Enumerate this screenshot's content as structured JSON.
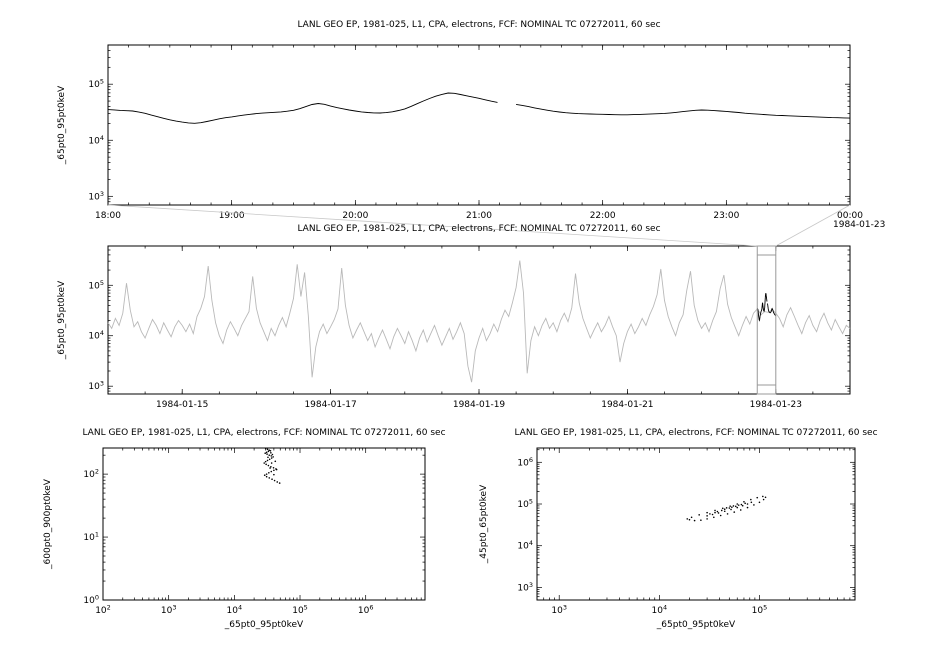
{
  "window": {
    "background": "#ffffff"
  },
  "chart_data": [
    {
      "id": "top",
      "type": "line",
      "title": "LANL GEO EP, 1981-025, L1, CPA, electrons, FCF: NOMINAL TC 07272011, 60 sec",
      "ylabel": "_65pt0_95pt0keV",
      "x_axis": {
        "scale": "linear",
        "min": 18,
        "max": 24,
        "minor_step": 0.16667,
        "major": [
          {
            "v": 18,
            "label": "18:00"
          },
          {
            "v": 19,
            "label": "19:00"
          },
          {
            "v": 20,
            "label": "20:00"
          },
          {
            "v": 21,
            "label": "21:00"
          },
          {
            "v": 22,
            "label": "22:00"
          },
          {
            "v": 23,
            "label": "23:00"
          },
          {
            "v": 24,
            "label": "00:00"
          }
        ],
        "end_label": "1984-01-23"
      },
      "y_axis": {
        "scale": "log",
        "min": 700,
        "max": 500000
      },
      "series": [
        {
          "name": "_65pt0_95pt0keV",
          "type": "line",
          "color": "#000000",
          "width": 0.9,
          "x0": 18,
          "dx": 0.05,
          "values": [
            35200,
            34800,
            34100,
            33600,
            33300,
            31800,
            30200,
            28100,
            26300,
            24600,
            23200,
            22000,
            21100,
            20400,
            20100,
            20600,
            21600,
            22800,
            24100,
            25200,
            26100,
            27200,
            28100,
            29000,
            29900,
            30500,
            31000,
            31500,
            32100,
            33000,
            34200,
            36500,
            39800,
            43500,
            45200,
            43800,
            40600,
            38200,
            36400,
            34700,
            33200,
            32000,
            31200,
            30800,
            30600,
            31100,
            32200,
            33900,
            36300,
            40100,
            44800,
            50200,
            55600,
            61000,
            65800,
            69500,
            68700,
            65600,
            62100,
            58800,
            55900,
            52600,
            49800,
            47400,
            null,
            null,
            43600,
            41800,
            39900,
            37800,
            35900,
            34300,
            33000,
            31900,
            31000,
            30400,
            29900,
            29600,
            29400,
            29200,
            29000,
            28800,
            28600,
            28500,
            28500,
            28700,
            28900,
            29200,
            29500,
            29800,
            30100,
            30700,
            31500,
            32500,
            33400,
            34200,
            34600,
            34300,
            33800,
            33300,
            32700,
            31900,
            31200,
            30400,
            29800,
            29300,
            28800,
            28300,
            27900,
            27600,
            27300,
            27000,
            26700,
            26400,
            26200,
            25900,
            25700,
            25400,
            25200,
            25000,
            24800
          ]
        }
      ]
    },
    {
      "id": "mid",
      "type": "line",
      "title": "LANL GEO EP, 1981-025, L1, CPA, electrons, FCF: NOMINAL TC 07272011, 60 sec",
      "ylabel": "_65pt0_95pt0keV",
      "x_axis": {
        "scale": "linear",
        "min": 14,
        "max": 24,
        "minor_step": 0.5,
        "major": [
          {
            "v": 15,
            "label": "1984-01-15"
          },
          {
            "v": 17,
            "label": "1984-01-17"
          },
          {
            "v": 19,
            "label": "1984-01-19"
          },
          {
            "v": 21,
            "label": "1984-01-21"
          },
          {
            "v": 23,
            "label": "1984-01-23"
          }
        ]
      },
      "y_axis": {
        "scale": "log",
        "min": 700,
        "max": 600000
      },
      "selection": {
        "x0": 22.75,
        "x1": 23.0
      },
      "series": [
        {
          "name": "_65pt0_95pt0keV (context)",
          "type": "line",
          "color": "#b9b9b9",
          "width": 0.9,
          "x0": 14,
          "dx": 0.05,
          "values": [
            18000,
            14000,
            22000,
            16000,
            28000,
            110000,
            32000,
            15000,
            19000,
            12000,
            9000,
            14000,
            21000,
            16000,
            11000,
            18000,
            13000,
            9500,
            15000,
            20000,
            16000,
            12000,
            17000,
            11000,
            24000,
            35000,
            60000,
            240000,
            50000,
            18000,
            10000,
            7000,
            13000,
            19000,
            14000,
            10000,
            16000,
            22000,
            30000,
            150000,
            35000,
            18000,
            12000,
            8000,
            14000,
            10000,
            16000,
            23000,
            15000,
            28000,
            55000,
            260000,
            60000,
            180000,
            25000,
            1500,
            6000,
            12000,
            17000,
            11000,
            15000,
            21000,
            34000,
            220000,
            40000,
            16000,
            9000,
            13000,
            18000,
            12000,
            8000,
            11000,
            6000,
            9000,
            13000,
            8500,
            5500,
            9500,
            14000,
            10000,
            7000,
            12000,
            8000,
            5000,
            9000,
            13000,
            7500,
            11000,
            16000,
            10000,
            6500,
            9500,
            14000,
            8500,
            12000,
            18000,
            11000,
            2500,
            1200,
            5000,
            9000,
            14000,
            8000,
            11000,
            17000,
            12000,
            21000,
            32000,
            24000,
            45000,
            90000,
            310000,
            70000,
            1800,
            8000,
            15000,
            10000,
            16000,
            22000,
            14000,
            18000,
            12000,
            20000,
            28000,
            19000,
            36000,
            170000,
            45000,
            22000,
            14000,
            9000,
            13000,
            18000,
            12000,
            16000,
            24000,
            15000,
            10000,
            3000,
            7000,
            12000,
            17000,
            11000,
            15000,
            22000,
            16000,
            26000,
            38000,
            65000,
            210000,
            50000,
            24000,
            15000,
            10000,
            18000,
            26000,
            80000,
            190000,
            40000,
            20000,
            14000,
            18000,
            12000,
            20000,
            30000,
            85000,
            160000,
            42000,
            23000,
            15000,
            10000,
            16000,
            24000,
            17000,
            28000,
            34000,
            26000,
            30000,
            29000,
            33000,
            28000,
            22000,
            15000,
            26000,
            36000,
            24000,
            16000,
            11000,
            18000,
            25000,
            16000,
            12000,
            20000,
            28000,
            18000,
            13000,
            21000,
            15000,
            11000,
            16000,
            14000
          ]
        },
        {
          "name": "_65pt0_95pt0keV (selected interval)",
          "type": "line",
          "color": "#000000",
          "width": 0.9,
          "ref_chart": 0,
          "ref_series": 0,
          "map_from": [
            18,
            24
          ],
          "map_to": [
            22.75,
            23.0
          ]
        }
      ]
    },
    {
      "id": "bl",
      "type": "scatter",
      "title": "LANL GEO EP, 1981-025, L1, CPA, electrons, FCF: NOMINAL TC 07272011, 60 sec",
      "xlabel": "_65pt0_95pt0keV",
      "ylabel": "_600pt0_900pt0keV",
      "x_axis": {
        "scale": "log",
        "min": 100,
        "max": 8000000
      },
      "y_axis": {
        "scale": "log",
        "min": 1,
        "max": 260
      },
      "series": [
        {
          "name": "600-900keV vs 65-95keV",
          "type": "scatter",
          "color": "#000000",
          "points": [
            [
              30000,
              255
            ],
            [
              32000,
              248
            ],
            [
              34000,
              240
            ],
            [
              33000,
              230
            ],
            [
              31000,
              222
            ],
            [
              29500,
              215
            ],
            [
              31500,
              208
            ],
            [
              34000,
              200
            ],
            [
              36500,
              195
            ],
            [
              39000,
              188
            ],
            [
              37000,
              180
            ],
            [
              34500,
              172
            ],
            [
              32000,
              165
            ],
            [
              30000,
              158
            ],
            [
              28500,
              150
            ],
            [
              30500,
              143
            ],
            [
              33000,
              137
            ],
            [
              36000,
              131
            ],
            [
              39500,
              126
            ],
            [
              43000,
              121
            ],
            [
              40000,
              115
            ],
            [
              36500,
              110
            ],
            [
              33500,
              105
            ],
            [
              31000,
              100
            ],
            [
              29000,
              96
            ],
            [
              31000,
              91
            ],
            [
              34000,
              87
            ],
            [
              37500,
              83
            ],
            [
              41000,
              79
            ],
            [
              45000,
              75
            ],
            [
              49000,
              72
            ],
            [
              44000,
              118
            ],
            [
              42000,
              160
            ],
            [
              38000,
              205
            ],
            [
              35500,
              235
            ],
            [
              37000,
              150
            ],
            [
              40000,
              98
            ],
            [
              35000,
              125
            ],
            [
              32500,
              185
            ],
            [
              36000,
              218
            ]
          ]
        }
      ]
    },
    {
      "id": "br",
      "type": "scatter",
      "title": "LANL GEO EP, 1981-025, L1, CPA, electrons, FCF: NOMINAL TC 07272011, 60 sec",
      "xlabel": "_65pt0_95pt0keV",
      "ylabel": "_45pt0_65pt0keV",
      "x_axis": {
        "scale": "log",
        "min": 600,
        "max": 900000
      },
      "y_axis": {
        "scale": "log",
        "min": 500,
        "max": 2200000
      },
      "series": [
        {
          "name": "45-65keV vs 65-95keV",
          "type": "scatter",
          "color": "#000000",
          "points": [
            [
              20000,
              42000
            ],
            [
              22500,
              40000
            ],
            [
              26000,
              41000
            ],
            [
              30000,
              44000
            ],
            [
              35000,
              48000
            ],
            [
              41000,
              53000
            ],
            [
              48000,
              58000
            ],
            [
              56000,
              64000
            ],
            [
              65000,
              72000
            ],
            [
              76000,
              82000
            ],
            [
              88000,
              95000
            ],
            [
              100000,
              110000
            ],
            [
              110000,
              128000
            ],
            [
              115000,
              145000
            ],
            [
              108000,
              152000
            ],
            [
              95000,
              142000
            ],
            [
              82000,
              128000
            ],
            [
              70000,
              113000
            ],
            [
              60000,
              100000
            ],
            [
              51000,
              89000
            ],
            [
              43000,
              79000
            ],
            [
              36000,
              70000
            ],
            [
              30000,
              62000
            ],
            [
              25000,
              55000
            ],
            [
              21000,
              48000
            ],
            [
              19000,
              44000
            ],
            [
              30000,
              52000
            ],
            [
              34000,
              56000
            ],
            [
              39000,
              61000
            ],
            [
              45000,
              67000
            ],
            [
              52000,
              74000
            ],
            [
              60000,
              82000
            ],
            [
              68000,
              91000
            ],
            [
              76000,
              100000
            ],
            [
              83000,
              110000
            ],
            [
              72000,
              104000
            ],
            [
              62000,
              94000
            ],
            [
              53000,
              84000
            ],
            [
              45000,
              75000
            ],
            [
              38000,
              66000
            ],
            [
              32000,
              58000
            ],
            [
              36000,
              62000
            ],
            [
              42000,
              70000
            ],
            [
              50000,
              80000
            ],
            [
              58000,
              88000
            ],
            [
              66000,
              97000
            ],
            [
              55000,
              90000
            ],
            [
              47000,
              81000
            ]
          ]
        }
      ]
    }
  ]
}
